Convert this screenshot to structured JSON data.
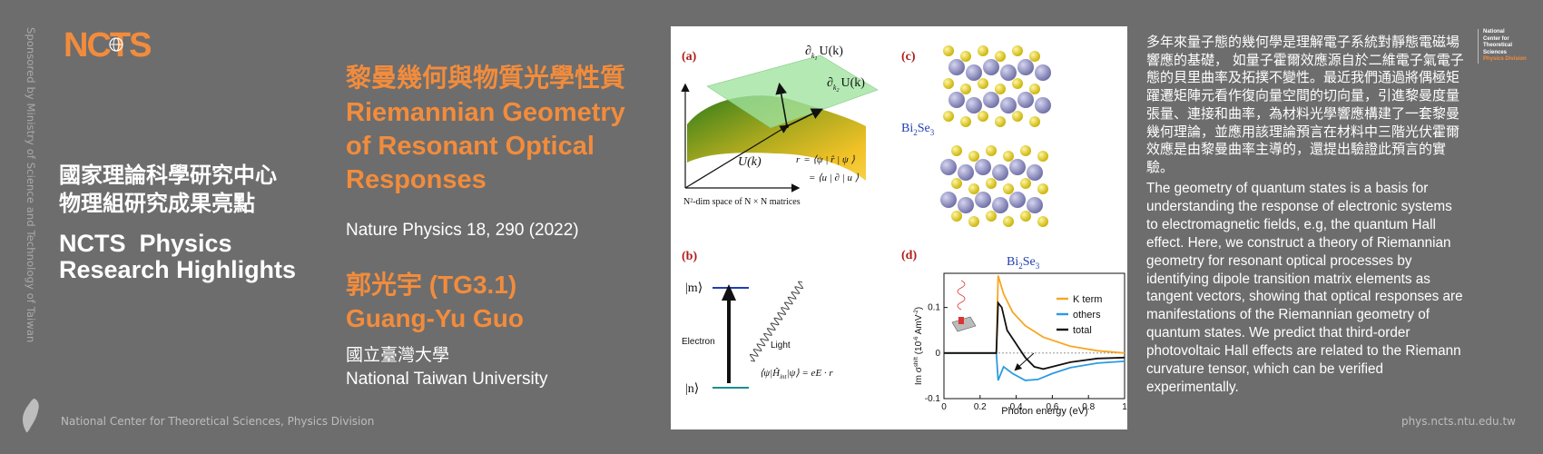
{
  "sponsor": "Sponsored by Ministry of Science and Technology of Taiwan",
  "logo_text": "NCTS",
  "left_title_zh": [
    "國家理論科學研究中心",
    "物理組研究成果亮點"
  ],
  "left_title_en": [
    "NCTS  Physics",
    "Research Highlights"
  ],
  "footer_left": "National Center for Theoretical Sciences, Physics Division",
  "footer_right": "phys.ncts.ntu.edu.tw",
  "article": {
    "title_zh": "黎曼幾何與物質光學性質",
    "title_en": [
      "Riemannian Geometry",
      "of Resonant Optical",
      "Responses"
    ],
    "journal": "Nature Physics 18, 290 (2022)",
    "author_zh": "郭光宇 (TG3.1)",
    "author_en": "Guang-Yu Guo",
    "inst_zh": "國立臺灣大學",
    "inst_en": "National Taiwan University"
  },
  "figure": {
    "panel_a": "(a)",
    "panel_b": "(b)",
    "panel_c": "(c)",
    "panel_d": "(d)",
    "a_tangent1": "∂",
    "a_tangent1_sub": "k",
    "a_tangent1_subsub": "1",
    "a_tangent1_rest": "U(k)",
    "a_tangent2_rest": "U(k)",
    "a_tangent2_subsub": "2",
    "a_uk": "U(k)",
    "a_caption": "N²-dim space of N × N matrices",
    "a_eq1_lhs": "r",
    "a_eq1": "= ⟨ψ",
    "a_eq1_mid": " | r̂",
    "a_eq1_end": " | ψ",
    "a_eq2": "= ⟨u",
    "a_eq2_mid": " | ∂",
    "a_eq2_end": " | u",
    "b_m": "|m⟩",
    "b_n": "|n⟩",
    "b_electron": "Electron",
    "b_light": "Light",
    "b_eq": "⟨ψ",
    "b_eq_mid": "|Ĥ",
    "b_eq_int": "int",
    "b_eq_end": "|ψ",
    "b_eq_rhs": "⟩ = eE · r",
    "c_label": "Bi",
    "c_sub2": "2",
    "c_se": "Se",
    "c_sub3": "3",
    "d_title_bi": "Bi",
    "d_title_se": "Se",
    "d_xlabel": "Photon energy (eV)",
    "d_ylabel": "Im σ",
    "d_ylabel_sup": "shift",
    "d_ylabel_unit": " (10",
    "d_ylabel_exp": "-6",
    "d_ylabel_tail": " AmV",
    "d_ylabel_tail_exp": "-2",
    "d_ylabel_close": ")",
    "d_xticks": [
      "0",
      "0.2",
      "0.4",
      "0.6",
      "0.8",
      "1"
    ],
    "d_yticks": [
      "0.1",
      "0",
      "-0.1"
    ],
    "d_legend": [
      "K term",
      "others",
      "total"
    ],
    "d_colors": {
      "kterm": "#f6a623",
      "others": "#2d9be0",
      "total": "#111111"
    }
  },
  "desc_zh": "多年來量子態的幾何學是理解電子系統對靜態電磁場響應的基礎，  如量子霍爾效應源自於二維電子氣電子態的貝里曲率及拓撲不變性。最近我們通過將偶極矩躍遷矩陣元看作復向量空間的切向量，引進黎曼度量張量、連接和曲率，為材料光學響應構建了一套黎曼幾何理論，並應用該理論預言在材料中三階光伏霍爾效應是由黎曼曲率主導的，還提出驗證此預言的實驗。",
  "desc_en": "The geometry of quantum states is a basis for understanding the response of electronic systems to electromagnetic fields, e.g, the quantum Hall effect. Here, we construct a theory of Riemannian geometry for resonant optical processes by identifying dipole transition matrix elements as tangent vectors, showing that optical responses are manifestations of the Riemannian geometry of quantum states. We predict that third-order photovoltaic Hall effects are related to the Riemann curvature tensor, which can be verified experimentally.",
  "side_org": [
    "National",
    "Center for",
    "Theoretical",
    "Sciences"
  ],
  "side_org_div": "Physics Division",
  "colors": {
    "accent": "#f28c3c",
    "background": "#6d6d6d"
  }
}
